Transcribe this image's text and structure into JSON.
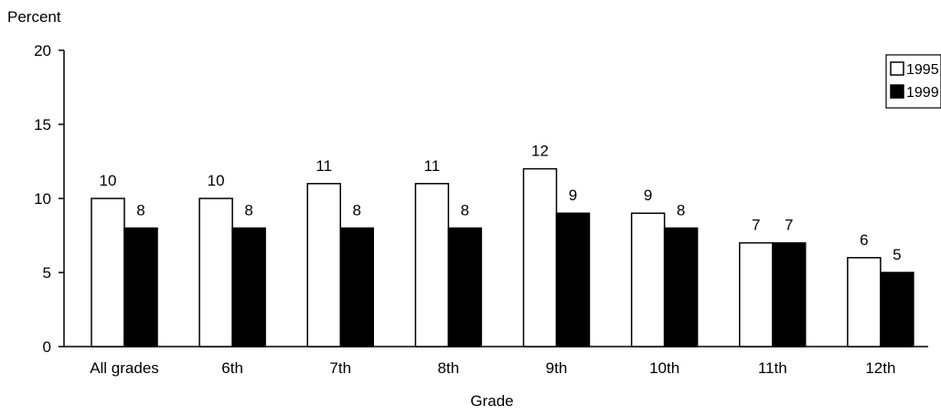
{
  "chart_data": {
    "type": "bar",
    "title": "",
    "ylabel": "Percent",
    "xlabel": "Grade",
    "categories": [
      "All grades",
      "6th",
      "7th",
      "8th",
      "9th",
      "10th",
      "11th",
      "12th"
    ],
    "series": [
      {
        "name": "1995",
        "values": [
          10,
          10,
          11,
          11,
          12,
          9,
          7,
          6
        ],
        "color": "#ffffff"
      },
      {
        "name": "1999",
        "values": [
          8,
          8,
          8,
          8,
          9,
          8,
          7,
          5
        ],
        "color": "#000000"
      }
    ],
    "ylim": [
      0,
      20
    ],
    "yticks": [
      0,
      5,
      10,
      15,
      20
    ],
    "grid": false,
    "legend_position": "top-right",
    "data_labels": true
  }
}
